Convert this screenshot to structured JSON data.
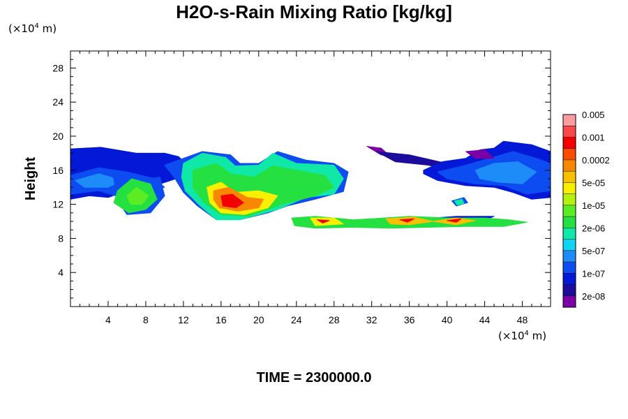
{
  "title": "H2O-s-Rain Mixing Ratio [kg/kg]",
  "time_label": "TIME = 2300000.0",
  "y_unit": {
    "prefix": "(×10",
    "exp": "4",
    "suffix": " m)"
  },
  "x_unit": {
    "prefix": "(×10",
    "exp": "4",
    "suffix": " m)"
  },
  "chart_data": {
    "type": "heatmap",
    "title": "H2O-s-Rain Mixing Ratio [kg/kg]",
    "ylabel": "Height",
    "xlabel": "",
    "x_unit": "×10^4 m",
    "y_unit": "×10^4 m",
    "xlim": [
      0,
      51
    ],
    "ylim": [
      0,
      30
    ],
    "x_ticks": [
      "4",
      "8",
      "12",
      "16",
      "20",
      "24",
      "28",
      "32",
      "36",
      "40",
      "44",
      "48"
    ],
    "y_ticks": [
      "4",
      "8",
      "12",
      "16",
      "20",
      "24",
      "28"
    ],
    "x_tick_values": [
      4,
      8,
      12,
      16,
      20,
      24,
      28,
      32,
      36,
      40,
      44,
      48
    ],
    "y_tick_values": [
      4,
      8,
      12,
      16,
      20,
      24,
      28
    ],
    "colorbar": {
      "labels": [
        "0.005",
        "0.001",
        "0.0002",
        "5e-05",
        "1e-05",
        "2e-06",
        "5e-07",
        "1e-07",
        "2e-08"
      ],
      "colors": [
        "#7b00a6",
        "#1c0c9b",
        "#0418d8",
        "#0c4cf0",
        "#1e8cf8",
        "#10d4f4",
        "#10e8a8",
        "#24e040",
        "#5cec24",
        "#b4f010",
        "#f8f000",
        "#f8c000",
        "#f88800",
        "#f84c00",
        "#f40000",
        "#f84848",
        "#fc9ca0"
      ]
    },
    "regions": [
      {
        "level": 1,
        "pts": [
          [
            0,
            17.2
          ],
          [
            2,
            18.4
          ],
          [
            6,
            18
          ],
          [
            10,
            17.4
          ],
          [
            11,
            16.8
          ],
          [
            8,
            16
          ],
          [
            4,
            15.8
          ],
          [
            0,
            15.6
          ]
        ]
      },
      {
        "level": 2,
        "pts": [
          [
            0,
            18.5
          ],
          [
            3.2,
            18.7
          ],
          [
            7,
            18
          ],
          [
            10,
            18
          ],
          [
            11.5,
            17.6
          ],
          [
            12.5,
            16.5
          ],
          [
            12,
            15.3
          ],
          [
            9,
            14.2
          ],
          [
            7,
            13.2
          ],
          [
            6,
            13.6
          ],
          [
            4,
            12.8
          ],
          [
            2,
            13
          ],
          [
            0,
            12.6
          ]
        ]
      },
      {
        "level": 3,
        "pts": [
          [
            0,
            15.4
          ],
          [
            3,
            16.3
          ],
          [
            6,
            15.8
          ],
          [
            9,
            15
          ],
          [
            10,
            14
          ],
          [
            8,
            13.4
          ],
          [
            6,
            12.6
          ],
          [
            3,
            13.6
          ],
          [
            0,
            13.2
          ]
        ]
      },
      {
        "level": 4,
        "pts": [
          [
            0.5,
            14.8
          ],
          [
            3,
            15.6
          ],
          [
            5.5,
            14.8
          ],
          [
            4,
            14
          ],
          [
            1.5,
            14
          ]
        ]
      },
      {
        "level": 3,
        "pts": [
          [
            4.5,
            15.6
          ],
          [
            7,
            14.8
          ],
          [
            9.5,
            15.2
          ],
          [
            10,
            13
          ],
          [
            8.5,
            11
          ],
          [
            6,
            10.8
          ],
          [
            5,
            12.4
          ]
        ]
      },
      {
        "level": 7,
        "pts": [
          [
            5,
            13.6
          ],
          [
            6.5,
            15
          ],
          [
            8.5,
            14.4
          ],
          [
            9.2,
            12.6
          ],
          [
            8,
            11.4
          ],
          [
            6.2,
            11
          ],
          [
            4.6,
            12.2
          ]
        ]
      },
      {
        "level": 8,
        "pts": [
          [
            6,
            13
          ],
          [
            7,
            14
          ],
          [
            8.3,
            13
          ],
          [
            7.6,
            12
          ],
          [
            6.4,
            12
          ]
        ]
      },
      {
        "level": 3,
        "pts": [
          [
            10,
            16.6
          ],
          [
            14,
            18.2
          ],
          [
            17,
            17.8
          ],
          [
            18,
            16.8
          ],
          [
            20,
            16.8
          ],
          [
            22,
            18.2
          ],
          [
            25,
            17.2
          ],
          [
            28,
            16.8
          ],
          [
            29.5,
            15.8
          ],
          [
            29,
            13.5
          ],
          [
            26,
            12.6
          ],
          [
            23,
            11.8
          ],
          [
            21,
            11
          ],
          [
            18,
            10.2
          ],
          [
            15.5,
            10.2
          ],
          [
            13.5,
            11.8
          ],
          [
            12,
            13.4
          ],
          [
            11,
            15.2
          ]
        ]
      },
      {
        "level": 6,
        "pts": [
          [
            12,
            16.8
          ],
          [
            14,
            18
          ],
          [
            16.5,
            17.5
          ],
          [
            17.5,
            16.5
          ],
          [
            20,
            16.6
          ],
          [
            21.5,
            18
          ],
          [
            24,
            16.8
          ],
          [
            28,
            16.6
          ],
          [
            29,
            15
          ],
          [
            28,
            13.2
          ],
          [
            25,
            12.8
          ],
          [
            22,
            11.4
          ],
          [
            18,
            10.2
          ],
          [
            15.5,
            10.2
          ],
          [
            13.8,
            11.8
          ],
          [
            12.2,
            13.6
          ],
          [
            11.8,
            15.2
          ]
        ]
      },
      {
        "level": 7,
        "pts": [
          [
            13,
            16
          ],
          [
            15.5,
            16.8
          ],
          [
            17,
            15.6
          ],
          [
            19.5,
            15.2
          ],
          [
            21.5,
            16.5
          ],
          [
            24,
            16
          ],
          [
            27,
            15.4
          ],
          [
            28,
            14
          ],
          [
            26,
            13
          ],
          [
            22.5,
            12
          ],
          [
            19,
            10.6
          ],
          [
            16,
            10.8
          ],
          [
            14.2,
            12.2
          ],
          [
            13,
            14
          ]
        ]
      },
      {
        "level": 10,
        "pts": [
          [
            14.5,
            14
          ],
          [
            16,
            14.6
          ],
          [
            17.5,
            13.4
          ],
          [
            20,
            13.6
          ],
          [
            22,
            13
          ],
          [
            21,
            11.6
          ],
          [
            18.5,
            10.8
          ],
          [
            16,
            11
          ],
          [
            14.8,
            12.2
          ]
        ]
      },
      {
        "level": 12,
        "pts": [
          [
            15.2,
            13.6
          ],
          [
            16.8,
            14
          ],
          [
            18.8,
            12.8
          ],
          [
            20.5,
            12.6
          ],
          [
            20,
            11.6
          ],
          [
            17.8,
            11.2
          ],
          [
            15.8,
            11.6
          ],
          [
            15.2,
            12.6
          ]
        ]
      },
      {
        "level": 14,
        "pts": [
          [
            16,
            13
          ],
          [
            17.2,
            13.2
          ],
          [
            18.4,
            12.2
          ],
          [
            17.6,
            11.6
          ],
          [
            16.2,
            11.8
          ]
        ]
      },
      {
        "level": 0,
        "pts": [
          [
            31.5,
            18.8
          ],
          [
            33,
            18.6
          ],
          [
            34,
            17.6
          ],
          [
            33,
            17.8
          ]
        ]
      },
      {
        "level": 1,
        "pts": [
          [
            32.5,
            18.2
          ],
          [
            36,
            17.8
          ],
          [
            40,
            16.8
          ],
          [
            44,
            16.6
          ],
          [
            42,
            15.6
          ],
          [
            38,
            16.6
          ],
          [
            34.5,
            17
          ]
        ]
      },
      {
        "level": 2,
        "pts": [
          [
            37.5,
            16
          ],
          [
            39.5,
            17
          ],
          [
            42,
            17.4
          ],
          [
            43.5,
            18.4
          ],
          [
            45,
            18.6
          ],
          [
            46,
            19.4
          ],
          [
            49,
            19
          ],
          [
            51,
            18.2
          ],
          [
            51,
            12.8
          ],
          [
            49,
            12.6
          ],
          [
            47,
            13.4
          ],
          [
            45,
            14
          ],
          [
            42,
            14.2
          ],
          [
            39,
            14.8
          ],
          [
            37.5,
            15.6
          ]
        ]
      },
      {
        "level": 3,
        "pts": [
          [
            39,
            15.8
          ],
          [
            42,
            16.6
          ],
          [
            44.5,
            17.4
          ],
          [
            47,
            18.2
          ],
          [
            49.5,
            17.4
          ],
          [
            51,
            16.8
          ],
          [
            51,
            13.6
          ],
          [
            48.5,
            13.2
          ],
          [
            46,
            14.2
          ],
          [
            43,
            14.4
          ],
          [
            40,
            15
          ]
        ]
      },
      {
        "level": 4,
        "pts": [
          [
            43,
            16
          ],
          [
            45,
            16.8
          ],
          [
            47.5,
            17
          ],
          [
            49.5,
            15.8
          ],
          [
            48,
            14.4
          ],
          [
            45.5,
            14.6
          ],
          [
            43.5,
            15
          ]
        ]
      },
      {
        "level": 0,
        "pts": [
          [
            42,
            18.2
          ],
          [
            44,
            18.4
          ],
          [
            45,
            17.4
          ],
          [
            43,
            17.4
          ]
        ]
      },
      {
        "level": 2,
        "pts": [
          [
            36,
            10.2
          ],
          [
            41,
            10.6
          ],
          [
            45,
            10.6
          ],
          [
            44,
            10.1
          ],
          [
            40,
            9.8
          ],
          [
            36.5,
            9.7
          ]
        ]
      },
      {
        "level": 7,
        "pts": [
          [
            23.5,
            10.4
          ],
          [
            26,
            10.6
          ],
          [
            30,
            10.2
          ],
          [
            32,
            10.3
          ],
          [
            36,
            10.6
          ],
          [
            40,
            10.4
          ],
          [
            44,
            10.4
          ],
          [
            46.5,
            10.2
          ],
          [
            48.5,
            9.9
          ],
          [
            46,
            9.4
          ],
          [
            42,
            9.4
          ],
          [
            38,
            9.3
          ],
          [
            34,
            9.2
          ],
          [
            30,
            9.3
          ],
          [
            26,
            9.2
          ],
          [
            23.8,
            9.5
          ]
        ]
      },
      {
        "level": 10,
        "pts": [
          [
            25.5,
            10.4
          ],
          [
            28,
            10.4
          ],
          [
            29,
            9.7
          ],
          [
            26,
            9.5
          ]
        ]
      },
      {
        "level": 11,
        "pts": [
          [
            33.5,
            10.3
          ],
          [
            36.5,
            10.5
          ],
          [
            38.5,
            10
          ],
          [
            36,
            9.6
          ],
          [
            34,
            9.7
          ]
        ]
      },
      {
        "level": 11,
        "pts": [
          [
            38.5,
            10
          ],
          [
            41,
            10.4
          ],
          [
            43,
            10.1
          ],
          [
            41,
            9.6
          ]
        ]
      },
      {
        "level": 14,
        "pts": [
          [
            26.2,
            10.2
          ],
          [
            27.5,
            10.1
          ],
          [
            26.8,
            9.8
          ]
        ]
      },
      {
        "level": 14,
        "pts": [
          [
            35,
            10.2
          ],
          [
            36.5,
            10.3
          ],
          [
            35.8,
            9.9
          ]
        ]
      },
      {
        "level": 14,
        "pts": [
          [
            40,
            10.1
          ],
          [
            41.5,
            10.3
          ],
          [
            41,
            9.9
          ]
        ]
      },
      {
        "level": 3,
        "pts": [
          [
            40.5,
            12.4
          ],
          [
            41.8,
            12.8
          ],
          [
            42.2,
            12.2
          ],
          [
            41,
            11.8
          ]
        ]
      },
      {
        "level": 6,
        "pts": [
          [
            40.8,
            12.4
          ],
          [
            41.6,
            12.6
          ],
          [
            41.8,
            12.1
          ],
          [
            41.1,
            11.9
          ]
        ]
      }
    ]
  }
}
